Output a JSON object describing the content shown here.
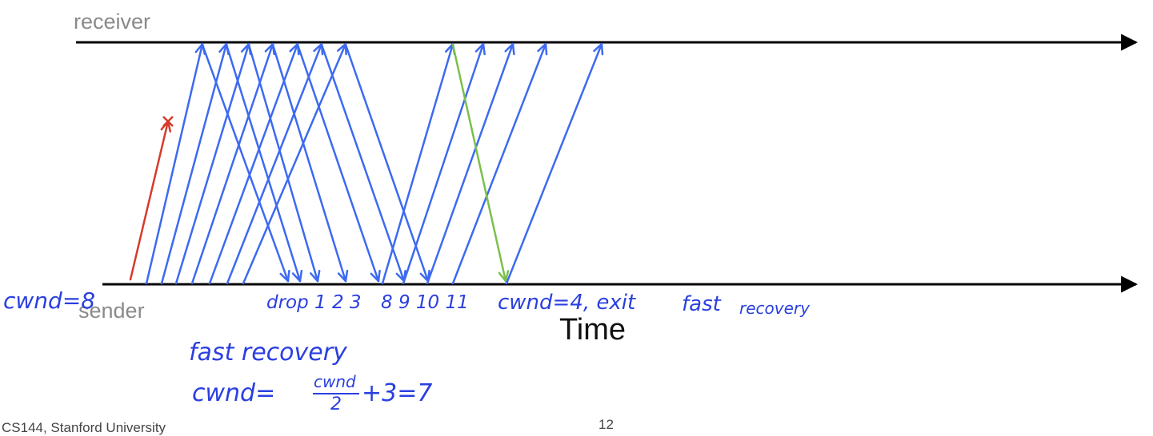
{
  "labels": {
    "receiver": "receiver",
    "sender": "sender",
    "time": "Time"
  },
  "annotations": {
    "cwnd_start": "cwnd=8",
    "drop_list": "drop 1 2 3",
    "acks_list": "8 9 10 11",
    "exit_text": "cwnd=4, exit",
    "exit_fast": "fast",
    "exit_recovery": "recovery",
    "fr_title": "fast recovery",
    "fr_formula_left": "cwnd=",
    "fr_num": "cwnd",
    "fr_den": "2",
    "fr_formula_right": "+3=7"
  },
  "footer": {
    "left": "CS144, Stanford University",
    "page": "12"
  },
  "colors": {
    "timeline": "#000000",
    "packet": "#3d6af0",
    "dropped": "#d63a2a",
    "ack": "#7bbf4a",
    "handwriting": "#2a3fe0"
  }
}
